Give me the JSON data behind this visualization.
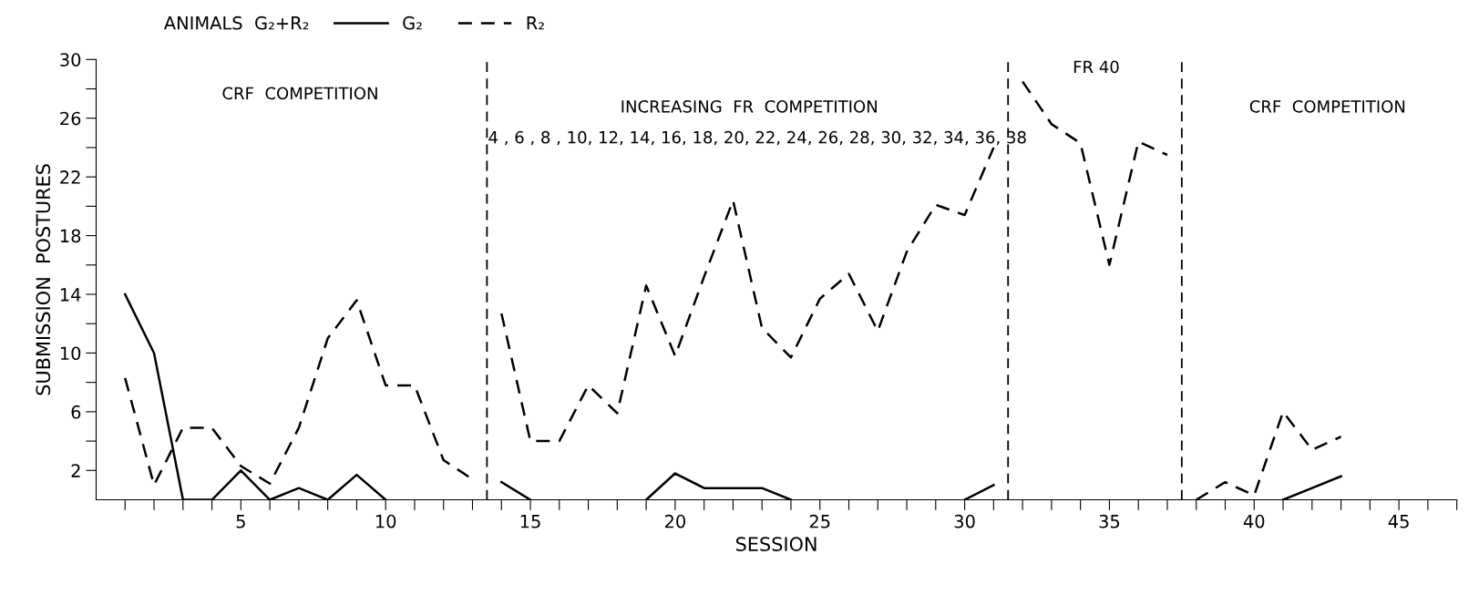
{
  "chart_data": {
    "type": "line",
    "xlabel": "SESSION",
    "ylabel": "SUBMISSION  POSTURES",
    "legend_title": "ANIMALS  G₂+R₂",
    "legend": "top left",
    "grid": false,
    "marker": "none",
    "x": [
      1,
      2,
      3,
      4,
      5,
      6,
      7,
      8,
      9,
      10,
      11,
      12,
      13,
      13.5,
      14,
      15,
      16,
      17,
      18,
      19,
      20,
      21,
      22,
      23,
      24,
      25,
      26,
      27,
      28,
      29,
      30,
      31,
      31.5,
      32,
      33,
      34,
      35,
      36,
      37,
      37.5,
      38,
      39,
      40,
      41,
      42,
      43
    ],
    "series": [
      {
        "name": "G₂",
        "color": "#000000",
        "line_style": "solid",
        "values": [
          14,
          10,
          0,
          0,
          2,
          0,
          0.8,
          0,
          1.7,
          0,
          null,
          null,
          null,
          null,
          1.2,
          0,
          null,
          null,
          null,
          0,
          1.8,
          0.8,
          0.8,
          0.8,
          0,
          null,
          null,
          null,
          null,
          null,
          0,
          1,
          null,
          null,
          null,
          null,
          null,
          null,
          null,
          null,
          null,
          null,
          null,
          0,
          0.8,
          1.6
        ]
      },
      {
        "name": "R₂",
        "color": "#000000",
        "line_style": "dashed",
        "values": [
          8.3,
          1,
          4.9,
          4.9,
          2.3,
          1.1,
          4.9,
          11,
          13.6,
          7.8,
          7.8,
          2.7,
          1.4,
          null,
          12.7,
          4,
          4,
          7.8,
          5.9,
          14.6,
          9.8,
          15.2,
          20.4,
          11.7,
          9.7,
          13.7,
          15.4,
          11.5,
          16.9,
          20.1,
          19.4,
          24,
          null,
          28.5,
          25.6,
          24.3,
          16,
          24.4,
          23.5,
          null,
          0,
          1.2,
          0.3,
          6,
          3.4,
          4.3
        ]
      }
    ],
    "xlim": [
      0,
      47
    ],
    "xticks": [
      {
        "value": 1,
        "label": null
      },
      {
        "value": 2,
        "label": null
      },
      {
        "value": 3,
        "label": null
      },
      {
        "value": 4,
        "label": null
      },
      5,
      {
        "value": 6,
        "label": null
      },
      {
        "value": 7,
        "label": null
      },
      {
        "value": 8,
        "label": null
      },
      {
        "value": 9,
        "label": null
      },
      10,
      {
        "value": 11,
        "label": null
      },
      {
        "value": 12,
        "label": null
      },
      {
        "value": 13,
        "label": null
      },
      {
        "value": 14,
        "label": null
      },
      15,
      {
        "value": 16,
        "label": null
      },
      {
        "value": 17,
        "label": null
      },
      {
        "value": 18,
        "label": null
      },
      {
        "value": 19,
        "label": null
      },
      20,
      {
        "value": 21,
        "label": null
      },
      {
        "value": 22,
        "label": null
      },
      {
        "value": 23,
        "label": null
      },
      {
        "value": 24,
        "label": null
      },
      25,
      {
        "value": 26,
        "label": null
      },
      {
        "value": 27,
        "label": null
      },
      {
        "value": 28,
        "label": null
      },
      {
        "value": 29,
        "label": null
      },
      30,
      {
        "value": 31,
        "label": null
      },
      {
        "value": 32,
        "label": null
      },
      {
        "value": 33,
        "label": null
      },
      {
        "value": 34,
        "label": null
      },
      35,
      {
        "value": 36,
        "label": null
      },
      {
        "value": 37,
        "label": null
      },
      {
        "value": 38,
        "label": null
      },
      {
        "value": 39,
        "label": null
      },
      40,
      {
        "value": 41,
        "label": null
      },
      {
        "value": 42,
        "label": null
      },
      {
        "value": 43,
        "label": null
      },
      {
        "value": 44,
        "label": null
      },
      45,
      {
        "value": 46,
        "label": null
      },
      {
        "value": 47,
        "label": null
      }
    ],
    "ylim": [
      0,
      30
    ],
    "yticks": [
      2,
      {
        "value": 4,
        "label": null
      },
      6,
      {
        "value": 8,
        "label": null
      },
      10,
      {
        "value": 12,
        "label": null
      },
      14,
      {
        "value": 16,
        "label": null
      },
      18,
      {
        "value": 20,
        "label": null
      },
      22,
      {
        "value": 24,
        "label": null
      },
      26,
      {
        "value": 28,
        "label": null
      },
      30
    ],
    "ref_lines": [
      {
        "axis": "x",
        "value": 13.5,
        "color": "#000000",
        "line_style": "dashed"
      },
      {
        "axis": "x",
        "value": 31.5,
        "color": "#000000",
        "line_style": "dashed"
      },
      {
        "axis": "x",
        "value": 37.5,
        "color": "#000000",
        "line_style": "dashed"
      }
    ],
    "annotations": [
      "CRF  COMPETITION",
      "INCREASING  FR  COMPETITION",
      "4 , 6 , 8 , 10, 12, 14, 16, 18, 20, 22, 24, 26, 28, 30, 32, 34, 36, 38",
      "FR 40",
      "CRF  COMPETITION"
    ]
  }
}
